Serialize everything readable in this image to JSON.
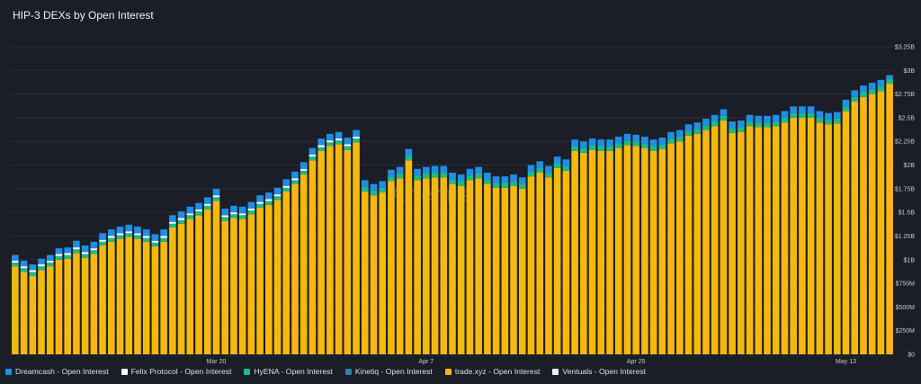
{
  "chart_data": {
    "type": "bar",
    "stacked": true,
    "title": "HIP-3 DEXs by Open Interest",
    "watermark": "Artemis",
    "xlabel": "",
    "ylabel": "",
    "y_ticks": [
      "$0",
      "$250M",
      "$500M",
      "$750M",
      "$1B",
      "$1.25B",
      "$1.5B",
      "$1.75B",
      "$2B",
      "$2.25B",
      "$2.5B",
      "$2.75B",
      "$3B",
      "$3.25B"
    ],
    "ylim": [
      0,
      3.25
    ],
    "x_tick_labels": [
      {
        "index": 23,
        "label": "Mar 20"
      },
      {
        "index": 47,
        "label": "Apr 7"
      },
      {
        "index": 71,
        "label": "Apr 25"
      },
      {
        "index": 95,
        "label": "May 13"
      }
    ],
    "legend_position": "bottom",
    "grid": true,
    "series": [
      {
        "name": "trade.xyz - Open Interest",
        "color": "#f5b80f",
        "values": [
          0.93,
          0.87,
          0.83,
          0.89,
          0.93,
          1.0,
          1.01,
          1.07,
          1.02,
          1.06,
          1.15,
          1.19,
          1.22,
          1.24,
          1.22,
          1.19,
          1.14,
          1.19,
          1.34,
          1.38,
          1.43,
          1.47,
          1.53,
          1.62,
          1.41,
          1.44,
          1.43,
          1.48,
          1.55,
          1.58,
          1.63,
          1.72,
          1.8,
          1.9,
          2.05,
          2.15,
          2.2,
          2.22,
          2.16,
          2.24,
          1.72,
          1.68,
          1.71,
          1.83,
          1.86,
          2.05,
          1.84,
          1.86,
          1.87,
          1.87,
          1.8,
          1.78,
          1.84,
          1.86,
          1.8,
          1.76,
          1.76,
          1.78,
          1.75,
          1.88,
          1.92,
          1.87,
          1.97,
          1.94,
          2.15,
          2.13,
          2.16,
          2.15,
          2.15,
          2.18,
          2.21,
          2.2,
          2.18,
          2.15,
          2.17,
          2.23,
          2.25,
          2.31,
          2.33,
          2.37,
          2.41,
          2.47,
          2.34,
          2.35,
          2.41,
          2.4,
          2.4,
          2.41,
          2.45,
          2.5,
          2.5,
          2.5,
          2.45,
          2.43,
          2.44,
          2.57,
          2.67,
          2.72,
          2.75,
          2.78,
          2.86
        ]
      },
      {
        "name": "Ventuals - Open Interest",
        "color": "#f0f0f0",
        "values": [
          0.0,
          0.0,
          0.0,
          0.0,
          0.0,
          0.0,
          0.0,
          0.0,
          0.0,
          0.0,
          0.0,
          0.0,
          0.0,
          0.0,
          0.0,
          0.0,
          0.0,
          0.0,
          0.0,
          0.0,
          0.0,
          0.0,
          0.0,
          0.0,
          0.0,
          0.0,
          0.0,
          0.0,
          0.0,
          0.0,
          0.0,
          0.0,
          0.0,
          0.0,
          0.0,
          0.0,
          0.0,
          0.0,
          0.0,
          0.0,
          0.0,
          0.0,
          0.0,
          0.0,
          0.0,
          0.0,
          0.0,
          0.0,
          0.0,
          0.0,
          0.0,
          0.0,
          0.0,
          0.0,
          0.0,
          0.0,
          0.0,
          0.0,
          0.0,
          0.0,
          0.0,
          0.0,
          0.0,
          0.0,
          0.0,
          0.0,
          0.0,
          0.0,
          0.0,
          0.0,
          0.0,
          0.0,
          0.0,
          0.0,
          0.0,
          0.0,
          0.0,
          0.0,
          0.0,
          0.0,
          0.0,
          0.0,
          0.0,
          0.0,
          0.0,
          0.0,
          0.0,
          0.0,
          0.0,
          0.0,
          0.0,
          0.0,
          0.0,
          0.0,
          0.0,
          0.0,
          0.0,
          0.0,
          0.0,
          0.0,
          0.0
        ]
      },
      {
        "name": "Kinetiq - Open Interest",
        "color": "#2f7fb0",
        "values": [
          0.0,
          0.0,
          0.0,
          0.0,
          0.0,
          0.0,
          0.0,
          0.0,
          0.0,
          0.0,
          0.0,
          0.0,
          0.0,
          0.0,
          0.0,
          0.0,
          0.0,
          0.0,
          0.0,
          0.0,
          0.0,
          0.0,
          0.0,
          0.0,
          0.0,
          0.0,
          0.0,
          0.0,
          0.0,
          0.0,
          0.0,
          0.0,
          0.0,
          0.0,
          0.0,
          0.0,
          0.0,
          0.0,
          0.0,
          0.0,
          0.0,
          0.0,
          0.0,
          0.0,
          0.0,
          0.0,
          0.0,
          0.0,
          0.0,
          0.0,
          0.0,
          0.0,
          0.0,
          0.0,
          0.0,
          0.0,
          0.0,
          0.0,
          0.0,
          0.0,
          0.0,
          0.0,
          0.0,
          0.0,
          0.0,
          0.0,
          0.0,
          0.0,
          0.0,
          0.0,
          0.0,
          0.0,
          0.0,
          0.0,
          0.0,
          0.0,
          0.0,
          0.0,
          0.0,
          0.0,
          0.0,
          0.0,
          0.0,
          0.0,
          0.0,
          0.0,
          0.0,
          0.0,
          0.0,
          0.0,
          0.0,
          0.0,
          0.0,
          0.0,
          0.0,
          0.0,
          0.0,
          0.0,
          0.0,
          0.0,
          0.0
        ]
      },
      {
        "name": "HyENA - Open Interest",
        "color": "#1fb98a",
        "values": [
          0.04,
          0.04,
          0.04,
          0.04,
          0.04,
          0.04,
          0.04,
          0.04,
          0.04,
          0.04,
          0.04,
          0.04,
          0.04,
          0.04,
          0.04,
          0.04,
          0.04,
          0.04,
          0.04,
          0.04,
          0.04,
          0.04,
          0.04,
          0.04,
          0.04,
          0.04,
          0.04,
          0.04,
          0.04,
          0.04,
          0.04,
          0.04,
          0.04,
          0.04,
          0.04,
          0.04,
          0.04,
          0.04,
          0.04,
          0.04,
          0.05,
          0.05,
          0.05,
          0.05,
          0.05,
          0.05,
          0.05,
          0.05,
          0.05,
          0.05,
          0.05,
          0.05,
          0.05,
          0.05,
          0.05,
          0.05,
          0.05,
          0.05,
          0.05,
          0.05,
          0.05,
          0.05,
          0.05,
          0.05,
          0.05,
          0.05,
          0.05,
          0.05,
          0.05,
          0.05,
          0.05,
          0.05,
          0.05,
          0.05,
          0.05,
          0.05,
          0.05,
          0.05,
          0.05,
          0.05,
          0.05,
          0.05,
          0.05,
          0.05,
          0.05,
          0.05,
          0.05,
          0.05,
          0.05,
          0.05,
          0.05,
          0.05,
          0.05,
          0.05,
          0.05,
          0.05,
          0.05,
          0.05,
          0.05,
          0.05,
          0.05
        ]
      },
      {
        "name": "Felix Protocol - Open Interest",
        "color": "#ffffff",
        "values": [
          0.02,
          0.02,
          0.02,
          0.02,
          0.02,
          0.02,
          0.02,
          0.02,
          0.02,
          0.02,
          0.02,
          0.02,
          0.02,
          0.02,
          0.02,
          0.02,
          0.02,
          0.02,
          0.02,
          0.02,
          0.02,
          0.02,
          0.02,
          0.02,
          0.02,
          0.02,
          0.02,
          0.02,
          0.02,
          0.02,
          0.02,
          0.02,
          0.02,
          0.02,
          0.02,
          0.02,
          0.02,
          0.02,
          0.02,
          0.02,
          0.0,
          0.0,
          0.0,
          0.0,
          0.0,
          0.0,
          0.0,
          0.0,
          0.0,
          0.0,
          0.0,
          0.0,
          0.0,
          0.0,
          0.0,
          0.0,
          0.0,
          0.0,
          0.0,
          0.0,
          0.0,
          0.0,
          0.0,
          0.0,
          0.0,
          0.0,
          0.0,
          0.0,
          0.0,
          0.0,
          0.0,
          0.0,
          0.0,
          0.0,
          0.0,
          0.0,
          0.0,
          0.0,
          0.0,
          0.0,
          0.0,
          0.0,
          0.0,
          0.0,
          0.0,
          0.0,
          0.0,
          0.0,
          0.0,
          0.0,
          0.0,
          0.0,
          0.0,
          0.0,
          0.0,
          0.0,
          0.0,
          0.0,
          0.0,
          0.0,
          0.0
        ]
      },
      {
        "name": "Dreamcash - Open Interest",
        "color": "#1e8fe6",
        "values": [
          0.06,
          0.06,
          0.06,
          0.06,
          0.06,
          0.06,
          0.06,
          0.07,
          0.07,
          0.07,
          0.07,
          0.07,
          0.07,
          0.07,
          0.07,
          0.07,
          0.07,
          0.07,
          0.07,
          0.07,
          0.07,
          0.07,
          0.07,
          0.07,
          0.07,
          0.07,
          0.07,
          0.07,
          0.07,
          0.07,
          0.07,
          0.07,
          0.07,
          0.07,
          0.07,
          0.07,
          0.07,
          0.07,
          0.07,
          0.07,
          0.07,
          0.07,
          0.07,
          0.07,
          0.07,
          0.07,
          0.07,
          0.07,
          0.07,
          0.07,
          0.07,
          0.07,
          0.07,
          0.07,
          0.07,
          0.07,
          0.07,
          0.07,
          0.07,
          0.07,
          0.07,
          0.07,
          0.07,
          0.07,
          0.07,
          0.07,
          0.07,
          0.07,
          0.07,
          0.07,
          0.07,
          0.07,
          0.07,
          0.07,
          0.07,
          0.07,
          0.07,
          0.07,
          0.07,
          0.07,
          0.07,
          0.07,
          0.07,
          0.07,
          0.07,
          0.07,
          0.07,
          0.07,
          0.07,
          0.07,
          0.07,
          0.07,
          0.07,
          0.07,
          0.07,
          0.07,
          0.07,
          0.07,
          0.07,
          0.07,
          0.04
        ]
      }
    ]
  },
  "legend": [
    {
      "label": "Dreamcash - Open Interest",
      "color": "#1e8fe6"
    },
    {
      "label": "Felix Protocol - Open Interest",
      "color": "#ffffff"
    },
    {
      "label": "HyENA - Open Interest",
      "color": "#1fb98a"
    },
    {
      "label": "Kinetiq - Open Interest",
      "color": "#2f7fb0"
    },
    {
      "label": "trade.xyz - Open Interest",
      "color": "#f5b80f"
    },
    {
      "label": "Ventuals - Open Interest",
      "color": "#f0f0f0"
    }
  ]
}
